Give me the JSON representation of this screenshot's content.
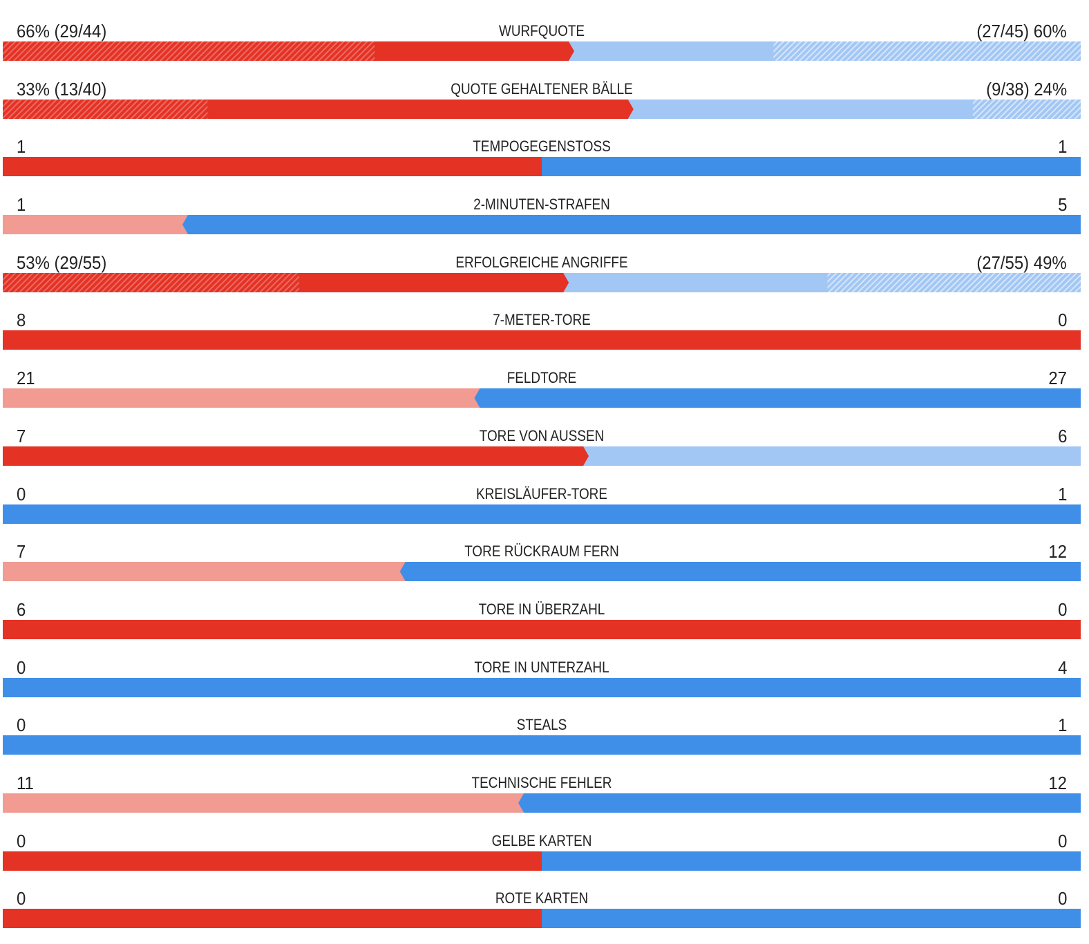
{
  "colors": {
    "home_strong": "#e43225",
    "home_light": "#f19b93",
    "away_strong": "#3f8fe8",
    "away_light": "#a3c7f4"
  },
  "stats": [
    {
      "label": "Wurfquote",
      "home_text": "66% (29/44)",
      "away_text": "(27/45) 60%",
      "split": 0.525,
      "leader": "home",
      "home_hatch": 0.345,
      "away_hatch": 0.285
    },
    {
      "label": "Quote gehaltener Bälle",
      "home_text": "33% (13/40)",
      "away_text": "(9/38) 24%",
      "split": 0.58,
      "leader": "home",
      "home_hatch": 0.19,
      "away_hatch": 0.1
    },
    {
      "label": "Tempogegenstoss",
      "home_text": "1",
      "away_text": "1",
      "split": 0.5,
      "leader": "even"
    },
    {
      "label": "2-Minuten-Strafen",
      "home_text": "1",
      "away_text": "5",
      "split": 0.1667,
      "leader": "away"
    },
    {
      "label": "Erfolgreiche Angriffe",
      "home_text": "53% (29/55)",
      "away_text": "(27/55) 49%",
      "split": 0.52,
      "leader": "home",
      "home_hatch": 0.275,
      "away_hatch": 0.235
    },
    {
      "label": "7-Meter-Tore",
      "home_text": "8",
      "away_text": "0",
      "split": 1.0,
      "leader": "home"
    },
    {
      "label": "Feldtore",
      "home_text": "21",
      "away_text": "27",
      "split": 0.4375,
      "leader": "away"
    },
    {
      "label": "Tore von Aussen",
      "home_text": "7",
      "away_text": "6",
      "split": 0.5385,
      "leader": "home"
    },
    {
      "label": "Kreisläufer-Tore",
      "home_text": "0",
      "away_text": "1",
      "split": 0.0,
      "leader": "away"
    },
    {
      "label": "Tore Rückraum Fern",
      "home_text": "7",
      "away_text": "12",
      "split": 0.3684,
      "leader": "away"
    },
    {
      "label": "Tore in Überzahl",
      "home_text": "6",
      "away_text": "0",
      "split": 1.0,
      "leader": "home"
    },
    {
      "label": "Tore in Unterzahl",
      "home_text": "0",
      "away_text": "4",
      "split": 0.0,
      "leader": "away"
    },
    {
      "label": "Steals",
      "home_text": "0",
      "away_text": "1",
      "split": 0.0,
      "leader": "away"
    },
    {
      "label": "Technische Fehler",
      "home_text": "11",
      "away_text": "12",
      "split": 0.4783,
      "leader": "away"
    },
    {
      "label": "Gelbe Karten",
      "home_text": "0",
      "away_text": "0",
      "split": 0.5,
      "leader": "even"
    },
    {
      "label": "Rote Karten",
      "home_text": "0",
      "away_text": "0",
      "split": 0.5,
      "leader": "even"
    }
  ]
}
